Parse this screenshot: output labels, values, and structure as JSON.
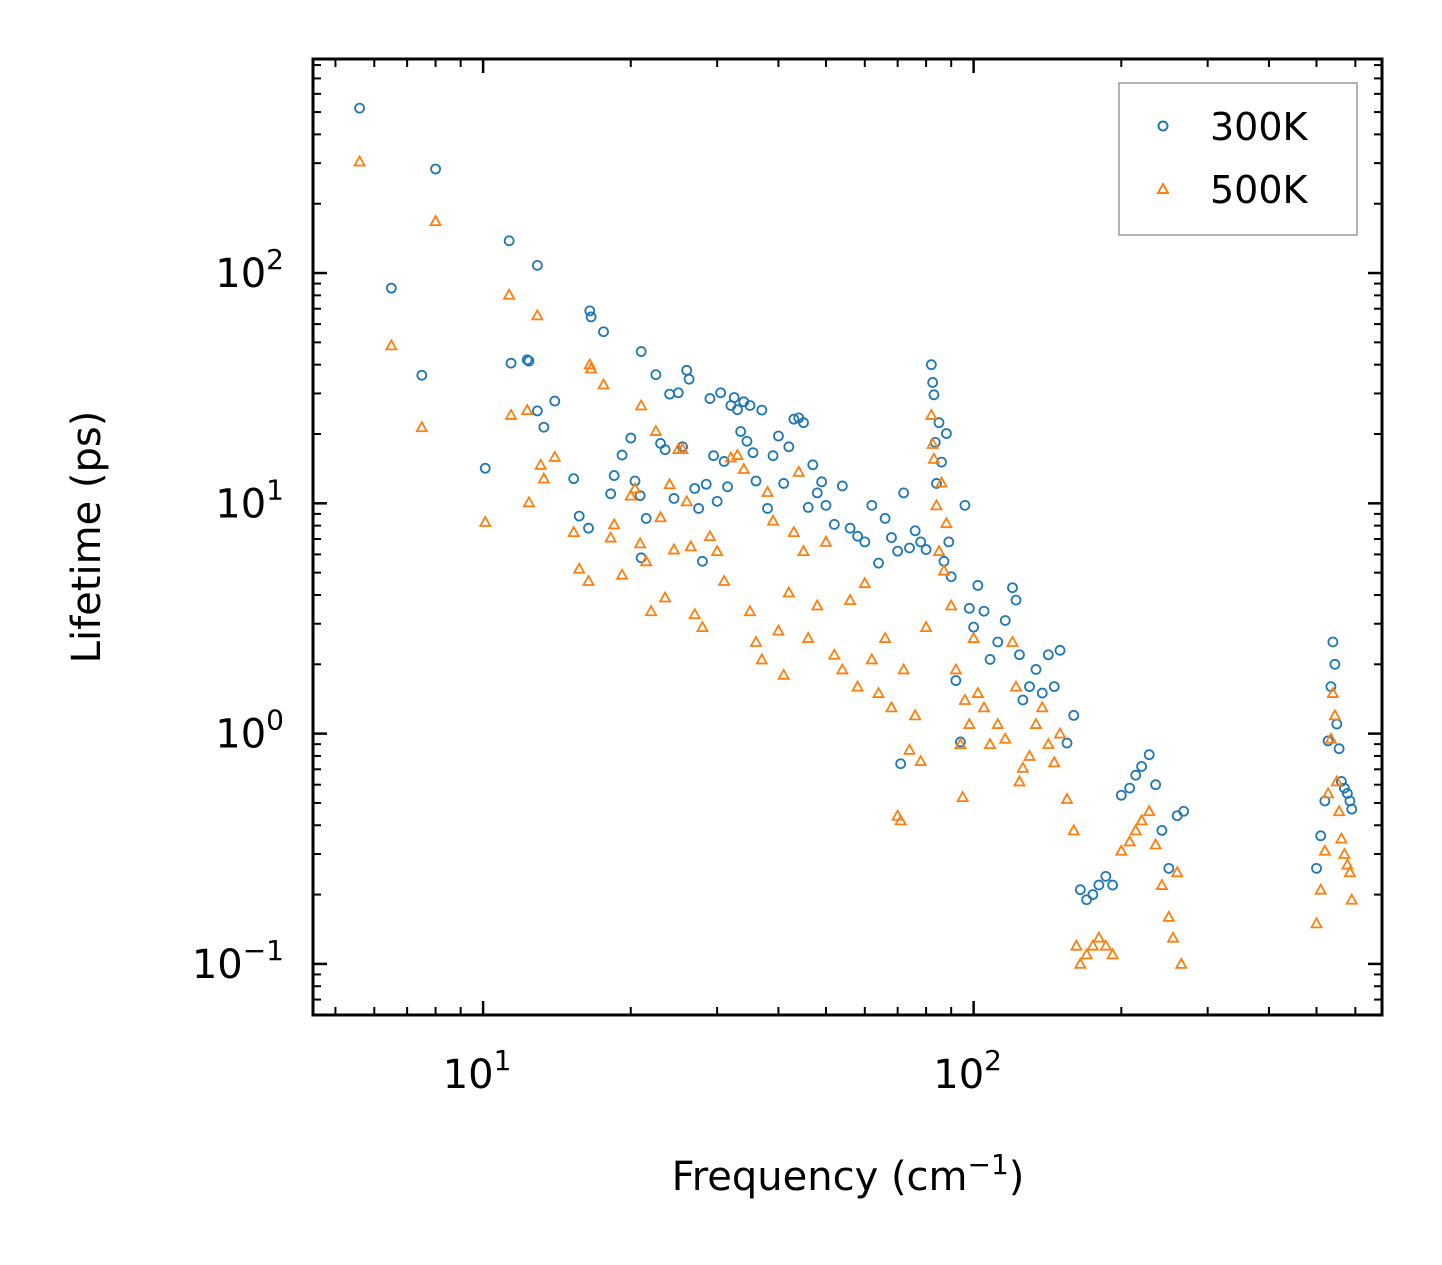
{
  "chart_data": {
    "type": "scatter",
    "title": "",
    "xlabel": "Frequency (cm",
    "xlabel_sup": "−1",
    "xlabel_end": ")",
    "ylabel": "Lifetime (ps)",
    "xscale": "log",
    "yscale": "log",
    "xlim": [
      4.5,
      680
    ],
    "ylim": [
      0.06,
      850
    ],
    "x_ticks": [
      {
        "value": 10,
        "base": "10",
        "exp": "1"
      },
      {
        "value": 100,
        "base": "10",
        "exp": "2"
      }
    ],
    "y_ticks": [
      {
        "value": 0.1,
        "base": "10",
        "exp": "−1"
      },
      {
        "value": 1,
        "base": "10",
        "exp": "0"
      },
      {
        "value": 10,
        "base": "10",
        "exp": "1"
      },
      {
        "value": 100,
        "base": "10",
        "exp": "2"
      }
    ],
    "legend_position": "top-right",
    "series": [
      {
        "name": "300K",
        "color": "#1f77b4",
        "marker": "circle",
        "points": [
          [
            5.6,
            520
          ],
          [
            6.5,
            86
          ],
          [
            7.5,
            36
          ],
          [
            8.0,
            283
          ],
          [
            10.1,
            14.2
          ],
          [
            11.3,
            138
          ],
          [
            11.4,
            40.6
          ],
          [
            12.3,
            42
          ],
          [
            12.4,
            41.5
          ],
          [
            12.9,
            25.2
          ],
          [
            12.9,
            108
          ],
          [
            13.3,
            21.4
          ],
          [
            14.0,
            27.8
          ],
          [
            15.3,
            12.8
          ],
          [
            15.7,
            8.8
          ],
          [
            16.4,
            7.8
          ],
          [
            16.5,
            68.5
          ],
          [
            16.6,
            64.5
          ],
          [
            17.6,
            55.6
          ],
          [
            18.2,
            11
          ],
          [
            18.5,
            13.2
          ],
          [
            19.2,
            16.2
          ],
          [
            20.0,
            19.2
          ],
          [
            20.4,
            12.5
          ],
          [
            20.9,
            10.8
          ],
          [
            21.0,
            45.6
          ],
          [
            21.5,
            8.6
          ],
          [
            21.0,
            5.8
          ],
          [
            22.5,
            36.2
          ],
          [
            23.0,
            18.2
          ],
          [
            23.5,
            17.1
          ],
          [
            24.0,
            29.8
          ],
          [
            24.5,
            10.5
          ],
          [
            25.0,
            30.2
          ],
          [
            25.5,
            17.6
          ],
          [
            26.0,
            37.8
          ],
          [
            26.3,
            34.6
          ],
          [
            27.0,
            11.6
          ],
          [
            27.5,
            9.5
          ],
          [
            28.0,
            5.6
          ],
          [
            28.5,
            12.1
          ],
          [
            29.0,
            28.5
          ],
          [
            29.5,
            16.1
          ],
          [
            30.0,
            10.2
          ],
          [
            30.5,
            30.2
          ],
          [
            31.0,
            15.2
          ],
          [
            31.5,
            11.8
          ],
          [
            32.0,
            26.6
          ],
          [
            32.5,
            28.8
          ],
          [
            33.0,
            25.5
          ],
          [
            33.5,
            20.5
          ],
          [
            34.0,
            27.6
          ],
          [
            34.5,
            18.6
          ],
          [
            35.0,
            26.6
          ],
          [
            35.5,
            16.6
          ],
          [
            36.0,
            12.5
          ],
          [
            37.0,
            25.4
          ],
          [
            38.0,
            9.5
          ],
          [
            39.0,
            16.1
          ],
          [
            40.0,
            19.6
          ],
          [
            41.0,
            12.2
          ],
          [
            42.0,
            17.6
          ],
          [
            43.0,
            23.2
          ],
          [
            44.0,
            23.5
          ],
          [
            45.0,
            22.4
          ],
          [
            46.0,
            9.6
          ],
          [
            47.0,
            14.7
          ],
          [
            48.0,
            11.1
          ],
          [
            49.0,
            12.4
          ],
          [
            50.0,
            9.8
          ],
          [
            52.0,
            8.1
          ],
          [
            54.0,
            11.9
          ],
          [
            56.0,
            7.8
          ],
          [
            58.0,
            7.2
          ],
          [
            60.0,
            6.8
          ],
          [
            62.0,
            9.8
          ],
          [
            64.0,
            5.5
          ],
          [
            66.0,
            8.6
          ],
          [
            68.0,
            7.1
          ],
          [
            70.0,
            6.2
          ],
          [
            71.0,
            0.74
          ],
          [
            72.0,
            11.1
          ],
          [
            74.0,
            6.4
          ],
          [
            76.0,
            7.6
          ],
          [
            78.0,
            6.8
          ],
          [
            80.0,
            6.3
          ],
          [
            82.0,
            40
          ],
          [
            82.5,
            33.5
          ],
          [
            83.0,
            29.6
          ],
          [
            83.5,
            18.4
          ],
          [
            84.0,
            12.2
          ],
          [
            85.0,
            22.4
          ],
          [
            86.0,
            15.1
          ],
          [
            87.0,
            5.6
          ],
          [
            88.0,
            20.1
          ],
          [
            89.0,
            6.8
          ],
          [
            90.0,
            4.8
          ],
          [
            92.0,
            1.7
          ],
          [
            94.0,
            0.92
          ],
          [
            96.0,
            9.8
          ],
          [
            98.0,
            3.5
          ],
          [
            100.0,
            2.9
          ],
          [
            102.0,
            4.4
          ],
          [
            105.0,
            3.4
          ],
          [
            108.0,
            2.1
          ],
          [
            112.0,
            2.5
          ],
          [
            116.0,
            3.1
          ],
          [
            120.0,
            4.3
          ],
          [
            122.0,
            3.8
          ],
          [
            124.0,
            2.2
          ],
          [
            126.0,
            1.4
          ],
          [
            130.0,
            1.6
          ],
          [
            134.0,
            1.9
          ],
          [
            138.0,
            1.5
          ],
          [
            142.0,
            2.2
          ],
          [
            146.0,
            1.6
          ],
          [
            150.0,
            2.3
          ],
          [
            155.0,
            0.91
          ],
          [
            160.0,
            1.2
          ],
          [
            165.0,
            0.21
          ],
          [
            170.0,
            0.19
          ],
          [
            175.0,
            0.2
          ],
          [
            180.0,
            0.22
          ],
          [
            186.0,
            0.24
          ],
          [
            192.0,
            0.22
          ],
          [
            200.0,
            0.54
          ],
          [
            208.0,
            0.58
          ],
          [
            214.0,
            0.66
          ],
          [
            220.0,
            0.72
          ],
          [
            228.0,
            0.81
          ],
          [
            235.0,
            0.6
          ],
          [
            242.0,
            0.38
          ],
          [
            250.0,
            0.26
          ],
          [
            260.0,
            0.44
          ],
          [
            268.0,
            0.46
          ],
          [
            500.0,
            0.26
          ],
          [
            510.0,
            0.36
          ],
          [
            520.0,
            0.51
          ],
          [
            528.0,
            0.93
          ],
          [
            535.0,
            1.6
          ],
          [
            540.0,
            2.5
          ],
          [
            545.0,
            2.0
          ],
          [
            550.0,
            1.1
          ],
          [
            556.0,
            0.86
          ],
          [
            562.0,
            0.62
          ],
          [
            570.0,
            0.58
          ],
          [
            578.0,
            0.55
          ],
          [
            585.0,
            0.51
          ],
          [
            590.0,
            0.47
          ]
        ]
      },
      {
        "name": "500K",
        "color": "#ff7f0e",
        "marker": "triangle",
        "points": [
          [
            5.6,
            305
          ],
          [
            6.5,
            48.5
          ],
          [
            7.5,
            21.4
          ],
          [
            8.0,
            168
          ],
          [
            10.1,
            8.3
          ],
          [
            11.3,
            80.5
          ],
          [
            11.4,
            24.2
          ],
          [
            12.3,
            25.4
          ],
          [
            12.4,
            10.1
          ],
          [
            12.9,
            65.5
          ],
          [
            13.1,
            14.7
          ],
          [
            13.3,
            12.8
          ],
          [
            14.0,
            15.9
          ],
          [
            15.3,
            7.5
          ],
          [
            15.7,
            5.2
          ],
          [
            16.4,
            4.6
          ],
          [
            16.5,
            40.1
          ],
          [
            16.6,
            38.5
          ],
          [
            17.6,
            32.8
          ],
          [
            18.2,
            7.1
          ],
          [
            18.5,
            8.1
          ],
          [
            19.2,
            4.9
          ],
          [
            20.0,
            10.8
          ],
          [
            20.4,
            11.6
          ],
          [
            20.9,
            6.7
          ],
          [
            21.0,
            26.6
          ],
          [
            21.5,
            5.6
          ],
          [
            22.0,
            3.4
          ],
          [
            22.5,
            20.6
          ],
          [
            23.0,
            8.7
          ],
          [
            23.5,
            3.9
          ],
          [
            24.0,
            12.1
          ],
          [
            24.5,
            6.3
          ],
          [
            25.0,
            17.2
          ],
          [
            25.5,
            17.2
          ],
          [
            26.0,
            10.2
          ],
          [
            26.5,
            6.5
          ],
          [
            27.0,
            3.3
          ],
          [
            28.0,
            2.9
          ],
          [
            29.0,
            7.2
          ],
          [
            30.0,
            6.2
          ],
          [
            31.0,
            4.6
          ],
          [
            32.0,
            15.8
          ],
          [
            33.0,
            16.2
          ],
          [
            34.0,
            14.1
          ],
          [
            35.0,
            3.4
          ],
          [
            36.0,
            2.5
          ],
          [
            37.0,
            2.1
          ],
          [
            38.0,
            11.2
          ],
          [
            39.0,
            8.4
          ],
          [
            40.0,
            2.8
          ],
          [
            41.0,
            1.8
          ],
          [
            42.0,
            4.1
          ],
          [
            43.0,
            7.5
          ],
          [
            44.0,
            13.7
          ],
          [
            45.0,
            6.2
          ],
          [
            46.0,
            2.6
          ],
          [
            48.0,
            3.6
          ],
          [
            50.0,
            6.8
          ],
          [
            52.0,
            2.2
          ],
          [
            54.0,
            1.9
          ],
          [
            56.0,
            3.8
          ],
          [
            58.0,
            1.6
          ],
          [
            60.0,
            4.5
          ],
          [
            62.0,
            2.1
          ],
          [
            64.0,
            1.5
          ],
          [
            66.0,
            2.6
          ],
          [
            68.0,
            1.3
          ],
          [
            70.0,
            0.44
          ],
          [
            71.0,
            0.42
          ],
          [
            72.0,
            1.9
          ],
          [
            74.0,
            0.85
          ],
          [
            76.0,
            1.2
          ],
          [
            78.0,
            0.76
          ],
          [
            80.0,
            2.9
          ],
          [
            82.0,
            24.2
          ],
          [
            82.5,
            18.1
          ],
          [
            83.0,
            15.6
          ],
          [
            84.0,
            9.8
          ],
          [
            85.0,
            6.2
          ],
          [
            86.0,
            12.3
          ],
          [
            87.0,
            5.1
          ],
          [
            88.0,
            8.2
          ],
          [
            90.0,
            3.6
          ],
          [
            92.0,
            1.9
          ],
          [
            94.0,
            0.9
          ],
          [
            95.0,
            0.53
          ],
          [
            96.0,
            1.4
          ],
          [
            98.0,
            1.1
          ],
          [
            100.0,
            2.6
          ],
          [
            102.0,
            1.5
          ],
          [
            105.0,
            1.3
          ],
          [
            108.0,
            0.9
          ],
          [
            112.0,
            1.1
          ],
          [
            116.0,
            0.95
          ],
          [
            120.0,
            2.5
          ],
          [
            122.0,
            1.6
          ],
          [
            124.0,
            0.62
          ],
          [
            126.0,
            0.71
          ],
          [
            130.0,
            0.8
          ],
          [
            134.0,
            1.1
          ],
          [
            138.0,
            1.3
          ],
          [
            142.0,
            0.9
          ],
          [
            146.0,
            0.75
          ],
          [
            150.0,
            1.0
          ],
          [
            155.0,
            0.52
          ],
          [
            160.0,
            0.38
          ],
          [
            162.0,
            0.12
          ],
          [
            165.0,
            0.1
          ],
          [
            170.0,
            0.11
          ],
          [
            175.0,
            0.12
          ],
          [
            180.0,
            0.13
          ],
          [
            186.0,
            0.12
          ],
          [
            192.0,
            0.11
          ],
          [
            200.0,
            0.31
          ],
          [
            208.0,
            0.34
          ],
          [
            214.0,
            0.38
          ],
          [
            220.0,
            0.42
          ],
          [
            228.0,
            0.46
          ],
          [
            235.0,
            0.33
          ],
          [
            242.0,
            0.22
          ],
          [
            250.0,
            0.16
          ],
          [
            255.0,
            0.13
          ],
          [
            260.0,
            0.25
          ],
          [
            265.0,
            0.1
          ],
          [
            500.0,
            0.15
          ],
          [
            510.0,
            0.21
          ],
          [
            520.0,
            0.31
          ],
          [
            528.0,
            0.55
          ],
          [
            535.0,
            0.95
          ],
          [
            540.0,
            1.5
          ],
          [
            545.0,
            1.2
          ],
          [
            550.0,
            0.62
          ],
          [
            556.0,
            0.46
          ],
          [
            562.0,
            0.35
          ],
          [
            570.0,
            0.3
          ],
          [
            578.0,
            0.27
          ],
          [
            585.0,
            0.25
          ],
          [
            590.0,
            0.19
          ]
        ]
      }
    ]
  }
}
